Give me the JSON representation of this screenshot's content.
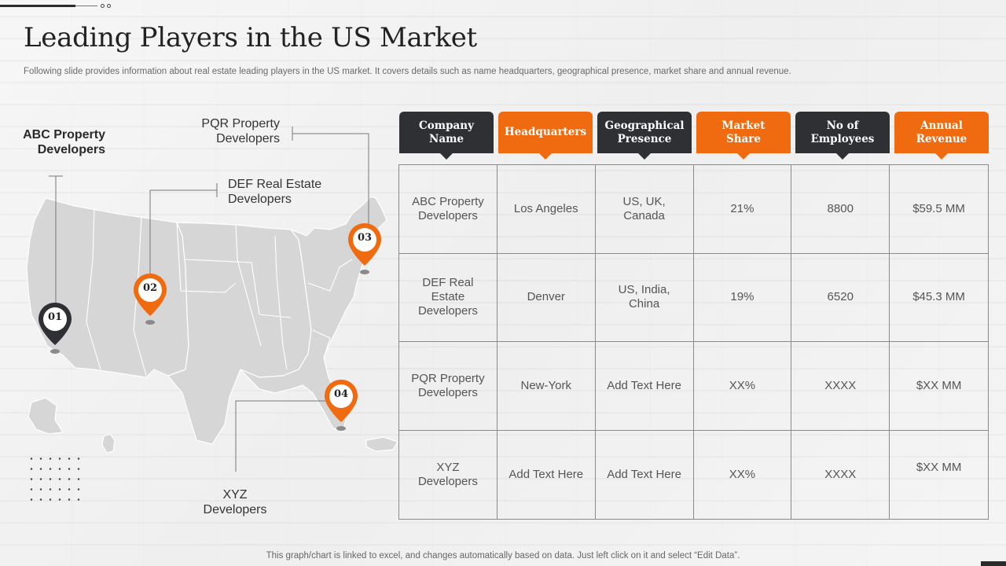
{
  "title": "Leading Players in the US Market",
  "subtitle": "Following slide provides information about real estate leading players in the US market. It covers details such as name headquarters, geographical presence, market share and annual revenue.",
  "footer": "This graph/chart is linked to excel,  and changes automatically based on data. Just left click on it and select “Edit Data”.",
  "colors": {
    "accent": "#f06a10",
    "dark": "#2e3033",
    "map": "#d7d7d7"
  },
  "map": {
    "labels": {
      "abc": [
        "ABC Property",
        "Developers"
      ],
      "pqr": [
        "PQR Property",
        "Developers"
      ],
      "def": [
        "DEF Real Estate",
        "Developers"
      ],
      "xyz": [
        "XYZ",
        "Developers"
      ]
    },
    "pins": [
      {
        "number": "01",
        "style": "dark"
      },
      {
        "number": "02",
        "style": "orange"
      },
      {
        "number": "03",
        "style": "orange"
      },
      {
        "number": "04",
        "style": "orange"
      }
    ]
  },
  "table": {
    "headers": [
      {
        "lines": [
          "Company",
          "Name"
        ],
        "style": "dark"
      },
      {
        "lines": [
          "Headquarters"
        ],
        "style": "orange"
      },
      {
        "lines": [
          "Geographical",
          "Presence"
        ],
        "style": "dark"
      },
      {
        "lines": [
          "Market",
          "Share"
        ],
        "style": "orange"
      },
      {
        "lines": [
          "No of",
          "Employees"
        ],
        "style": "dark"
      },
      {
        "lines": [
          "Annual",
          "Revenue"
        ],
        "style": "orange"
      }
    ],
    "rows": [
      [
        [
          "ABC Property",
          "Developers"
        ],
        [
          "Los Angeles"
        ],
        [
          "US, UK,",
          "Canada"
        ],
        [
          "21%"
        ],
        [
          "8800"
        ],
        [
          "$59.5 MM"
        ]
      ],
      [
        [
          "DEF Real",
          "Estate",
          "Developers"
        ],
        [
          "Denver"
        ],
        [
          "US, India,",
          "China"
        ],
        [
          "19%"
        ],
        [
          "6520"
        ],
        [
          "$45.3 MM"
        ]
      ],
      [
        [
          "PQR Property",
          "Developers"
        ],
        [
          "New-York"
        ],
        [
          "Add Text Here"
        ],
        [
          "XX%"
        ],
        [
          "XXXX"
        ],
        [
          "$XX MM"
        ]
      ],
      [
        [
          "XYZ",
          "Developers"
        ],
        [
          "Add Text Here"
        ],
        [
          "Add Text Here"
        ],
        [
          "XX%"
        ],
        [
          "XXXX"
        ],
        [
          "$XX MM"
        ]
      ]
    ]
  }
}
